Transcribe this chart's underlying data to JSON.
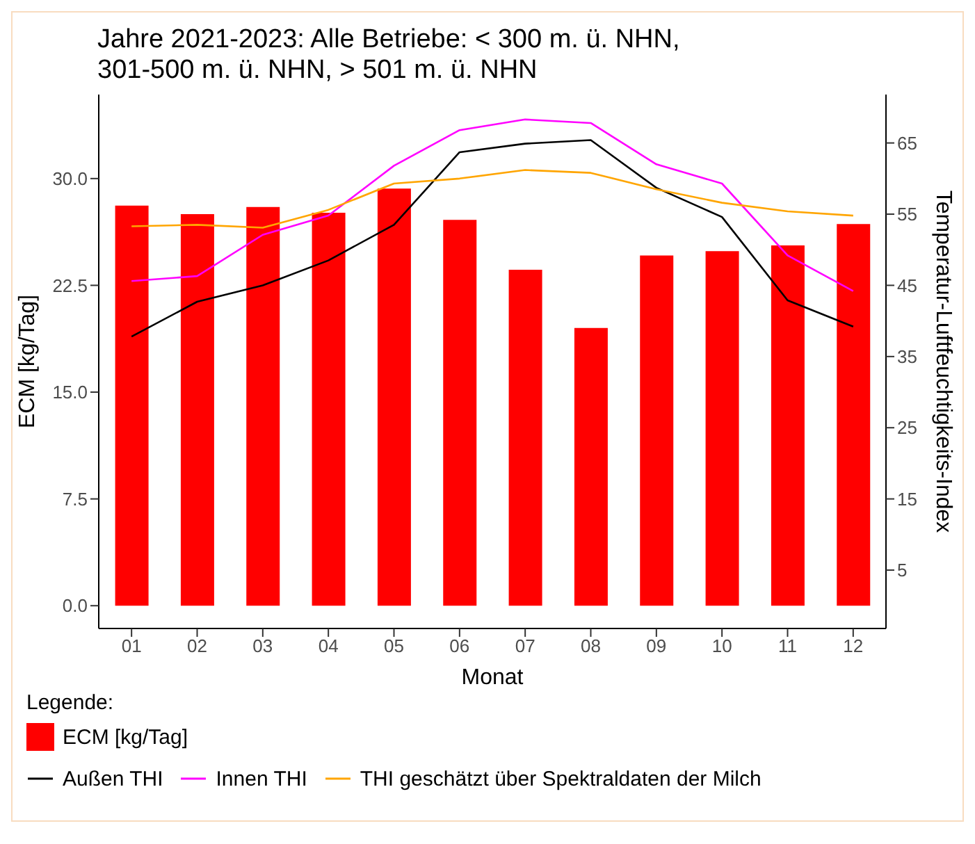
{
  "chart_data": {
    "type": "bar",
    "title": "Jahre 2021-2023: Alle Betriebe: < 300 m. ü. NHN,\n301-500 m. ü. NHN, > 501 m. ü. NHN",
    "xlabel": "Monat",
    "ylabel": "ECM [kg/Tag]",
    "y2label": "Temperatur-Luftfeuchtigkeits-Index",
    "legend_title": "Legende:",
    "categories": [
      "01",
      "02",
      "03",
      "04",
      "05",
      "06",
      "07",
      "08",
      "09",
      "10",
      "11",
      "12"
    ],
    "series": [
      {
        "name": "ECM [kg/Tag]",
        "color": "#ff0000",
        "values": [
          28.1,
          27.5,
          28.0,
          27.6,
          29.3,
          27.1,
          23.6,
          19.5,
          24.6,
          24.9,
          25.3,
          26.8
        ]
      },
      {
        "name": "Außen THI",
        "type": "line",
        "axis": "y2",
        "color": "#000000",
        "values": [
          37.8,
          42.7,
          45.0,
          48.5,
          53.5,
          63.7,
          64.9,
          65.4,
          58.7,
          54.6,
          42.9,
          39.2
        ]
      },
      {
        "name": "Innen THI",
        "type": "line",
        "axis": "y2",
        "color": "#ff00ff",
        "values": [
          45.6,
          46.3,
          52.1,
          54.8,
          61.8,
          66.8,
          68.3,
          67.8,
          62.0,
          59.3,
          49.2,
          44.2
        ]
      },
      {
        "name": "THI geschätzt über Spektraldaten der Milch",
        "type": "line",
        "axis": "y2",
        "color": "#ffa500",
        "values": [
          53.3,
          53.5,
          53.1,
          55.6,
          59.3,
          60.0,
          61.2,
          60.8,
          58.5,
          56.6,
          55.4,
          54.8
        ]
      }
    ],
    "ylim": [
      -1.6,
      35.9
    ],
    "yticks": [
      {
        "value": 0,
        "label": "0.0"
      },
      7.5,
      {
        "value": 15,
        "label": "15.0"
      },
      22.5,
      {
        "value": 30,
        "label": "30.0"
      }
    ],
    "y2lim": [
      -3.2,
      71.8
    ],
    "y2ticks": [
      5,
      15,
      25,
      35,
      45,
      55,
      65
    ],
    "grid": false,
    "legend": "bottom",
    "line_style": "solid",
    "marker": "none"
  }
}
